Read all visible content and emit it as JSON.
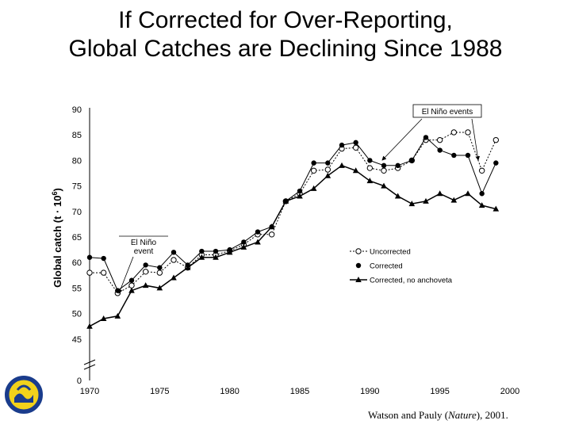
{
  "slide": {
    "title_line1": "If Corrected for Over-Reporting,",
    "title_line2": "Global Catches are Declining Since 1988",
    "credit_prefix": "Watson and Pauly (",
    "credit_journal": "Nature",
    "credit_suffix": "), 2001.",
    "logo_text": "SEA AROUND US PROJECT"
  },
  "chart_data": {
    "type": "line",
    "title": "",
    "xlabel": "",
    "ylabel": "Global catch (t · 10",
    "ylabel_sup": "6",
    "ylabel_close": ")",
    "xlim": [
      1970,
      2000
    ],
    "ylim": [
      40,
      90
    ],
    "y_zero_label": "0",
    "x_ticks": [
      1970,
      1975,
      1980,
      1985,
      1990,
      1995,
      2000
    ],
    "y_ticks": [
      45,
      50,
      55,
      60,
      65,
      70,
      75,
      80,
      85,
      90
    ],
    "colors": {
      "line": "#000000",
      "open_fill": "#ffffff"
    },
    "series": [
      {
        "name": "Uncorrected",
        "marker": "open-circle",
        "x": [
          1970,
          1971,
          1972,
          1973,
          1974,
          1975,
          1976,
          1977,
          1978,
          1979,
          1980,
          1981,
          1982,
          1983,
          1984,
          1985,
          1986,
          1987,
          1988,
          1989,
          1990,
          1991,
          1992,
          1993,
          1994,
          1995,
          1996,
          1997,
          1998,
          1999
        ],
        "y": [
          58.0,
          58.0,
          54.0,
          55.5,
          58.2,
          58.0,
          60.5,
          59.0,
          61.5,
          61.5,
          62.3,
          63.5,
          65.5,
          65.5,
          72.0,
          73.5,
          78.0,
          78.2,
          82.3,
          82.5,
          78.5,
          78.0,
          78.5,
          80.0,
          84.0,
          84.0,
          85.5,
          85.5,
          78.0,
          84.0
        ]
      },
      {
        "name": "Corrected",
        "marker": "filled-circle",
        "x": [
          1970,
          1971,
          1972,
          1973,
          1974,
          1975,
          1976,
          1977,
          1978,
          1979,
          1980,
          1981,
          1982,
          1983,
          1984,
          1985,
          1986,
          1987,
          1988,
          1989,
          1990,
          1991,
          1992,
          1993,
          1994,
          1995,
          1996,
          1997,
          1998,
          1999
        ],
        "y": [
          61.0,
          60.8,
          54.5,
          56.5,
          59.5,
          59.0,
          62.0,
          59.5,
          62.2,
          62.2,
          62.5,
          64.0,
          66.0,
          67.0,
          72.0,
          74.0,
          79.5,
          79.5,
          83.0,
          83.5,
          80.0,
          79.0,
          79.0,
          80.0,
          84.5,
          82.0,
          81.0,
          81.0,
          73.5,
          79.5
        ]
      },
      {
        "name": "Corrected, no anchoveta",
        "marker": "filled-triangle",
        "x": [
          1970,
          1971,
          1972,
          1973,
          1974,
          1975,
          1976,
          1977,
          1978,
          1979,
          1980,
          1981,
          1982,
          1983,
          1984,
          1985,
          1986,
          1987,
          1988,
          1989,
          1990,
          1991,
          1992,
          1993,
          1994,
          1995,
          1996,
          1997,
          1998,
          1999
        ],
        "y": [
          47.5,
          49.0,
          49.5,
          54.5,
          55.5,
          55.0,
          57.0,
          59.0,
          61.0,
          61.0,
          62.0,
          63.0,
          64.0,
          67.0,
          72.0,
          73.0,
          74.5,
          77.0,
          79.0,
          78.0,
          76.0,
          75.0,
          73.0,
          71.5,
          72.0,
          73.5,
          72.2,
          73.5,
          71.2,
          70.5
        ]
      }
    ],
    "annotations": [
      {
        "text": "El Niño events",
        "type": "boxed"
      },
      {
        "text_line1": "El Niño",
        "text_line2": "event",
        "type": "boxed"
      }
    ],
    "legend": {
      "position": "right-middle"
    }
  }
}
